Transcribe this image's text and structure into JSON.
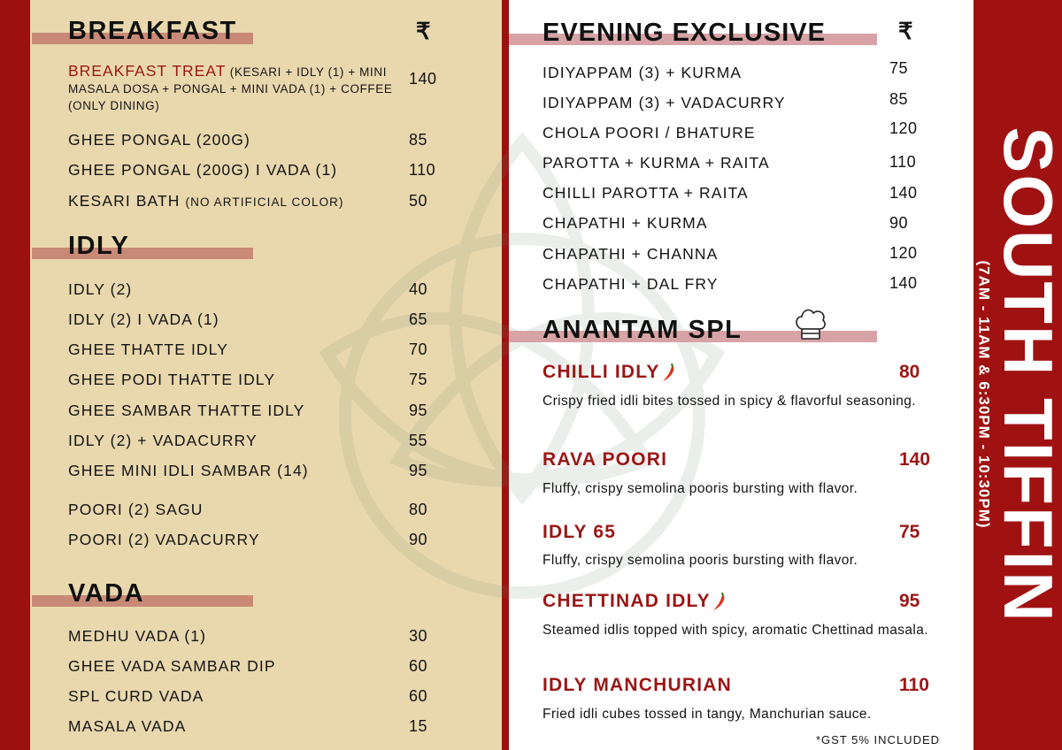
{
  "title": "SOUTH TIFFIN",
  "hours": "(7AM - 11AM & 6:30PM - 10:30PM)",
  "currency": "₹",
  "colors": {
    "brand_red": "#9c1010",
    "beige": "#e9d8ae",
    "heading_bar_left": "#c88a77",
    "heading_bar_right": "#d8a3a6"
  },
  "breakfast": {
    "heading": "BREAKFAST",
    "treat": {
      "name": "BREAKFAST TREAT",
      "detail": "(KESARI + IDLY (1) + MINI MASALA DOSA + PONGAL +  MINI VADA (1) + COFFEE (ONLY DINING)",
      "price": "140"
    },
    "items": [
      {
        "name": "GHEE PONGAL (200G)",
        "price": "85"
      },
      {
        "name": "GHEE PONGAL (200G) I VADA (1)",
        "price": "110"
      },
      {
        "name": "KESARI BATH",
        "note": "(NO ARTIFICIAL COLOR)",
        "price": "50"
      }
    ]
  },
  "idly": {
    "heading": "IDLY",
    "items": [
      {
        "name": "IDLY (2)",
        "price": "40"
      },
      {
        "name": "IDLY (2) I VADA (1)",
        "price": "65"
      },
      {
        "name": "GHEE THATTE IDLY",
        "price": "70"
      },
      {
        "name": "GHEE PODI THATTE IDLY",
        "price": "75"
      },
      {
        "name": "GHEE SAMBAR THATTE IDLY",
        "price": "95"
      },
      {
        "name": "IDLY (2) + VADACURRY",
        "price": "55"
      },
      {
        "name": "GHEE MINI IDLI SAMBAR (14)",
        "price": "95"
      },
      {
        "name": "POORI (2) SAGU",
        "price": "80"
      },
      {
        "name": "POORI (2) VADACURRY",
        "price": "90"
      }
    ]
  },
  "vada": {
    "heading": "VADA",
    "items": [
      {
        "name": "MEDHU VADA (1)",
        "price": "30"
      },
      {
        "name": "GHEE VADA SAMBAR DIP",
        "price": "60"
      },
      {
        "name": "SPL CURD VADA",
        "price": "60"
      },
      {
        "name": "MASALA VADA",
        "price": "15"
      }
    ]
  },
  "evening": {
    "heading": "EVENING EXCLUSIVE",
    "items": [
      {
        "name": "IDIYAPPAM (3) + KURMA",
        "price": "75"
      },
      {
        "name": "IDIYAPPAM (3) + VADACURRY",
        "price": "85"
      },
      {
        "name": "CHOLA POORI / BHATURE",
        "price": "120"
      },
      {
        "name": "PAROTTA + KURMA + RAITA",
        "price": "110"
      },
      {
        "name": "CHILLI PAROTTA + RAITA",
        "price": "140"
      },
      {
        "name": "CHAPATHI + KURMA",
        "price": "90"
      },
      {
        "name": "CHAPATHI + CHANNA",
        "price": "120"
      },
      {
        "name": "CHAPATHI + DAL FRY",
        "price": "140"
      }
    ]
  },
  "special": {
    "heading": "ANANTAM SPL",
    "icon": "chef-hat-icon",
    "items": [
      {
        "name": "CHILLI IDLY",
        "spicy": true,
        "price": "80",
        "desc": "Crispy fried idli bites tossed in spicy & flavorful seasoning."
      },
      {
        "name": "RAVA POORI",
        "spicy": false,
        "price": "140",
        "desc": "Fluffy, crispy semolina pooris bursting with flavor."
      },
      {
        "name": "IDLY 65",
        "spicy": false,
        "price": "75",
        "desc": "Fluffy, crispy semolina pooris bursting with flavor."
      },
      {
        "name": "CHETTINAD IDLY",
        "spicy": true,
        "price": "95",
        "desc": "Steamed idlis topped with spicy, aromatic Chettinad masala."
      },
      {
        "name": "IDLY MANCHURIAN",
        "spicy": false,
        "price": "110",
        "desc": "Fried idli cubes tossed in tangy, Manchurian sauce."
      }
    ]
  },
  "gst_note": "*GST 5% INCLUDED"
}
